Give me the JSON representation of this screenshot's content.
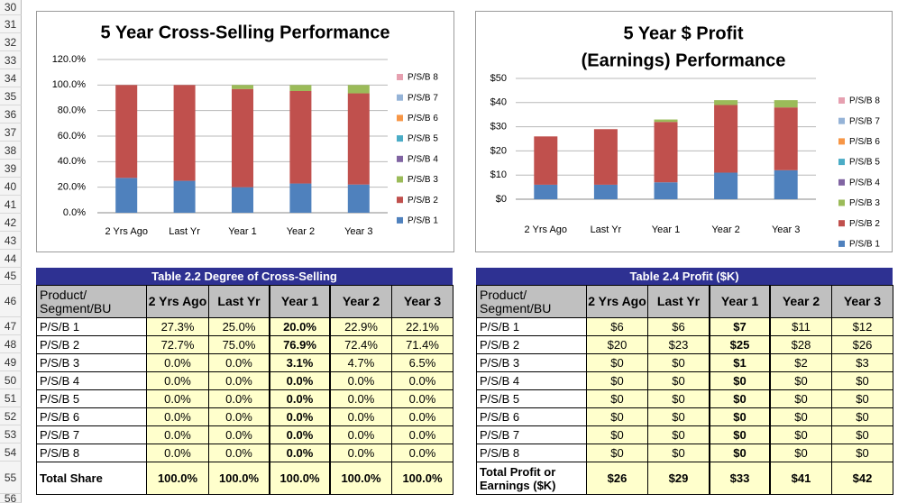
{
  "row_numbers": [
    "30",
    "31",
    "32",
    "33",
    "34",
    "35",
    "36",
    "37",
    "38",
    "39",
    "40",
    "41",
    "42",
    "43",
    "44",
    "45",
    "46",
    "47",
    "48",
    "49",
    "50",
    "51",
    "52",
    "53",
    "54",
    "55",
    "56"
  ],
  "chart_data": [
    {
      "type": "bar",
      "stacked": true,
      "title": [
        "5 Year Cross-Selling Performance"
      ],
      "grid": true,
      "legend": "right",
      "categories": [
        "2 Yrs Ago",
        "Last Yr",
        "Year 1",
        "Year 2",
        "Year 3"
      ],
      "ylim": [
        0,
        120
      ],
      "yticks": [
        {
          "value": 0,
          "label": "0.0%"
        },
        {
          "value": 20,
          "label": "20.0%"
        },
        {
          "value": 40,
          "label": "40.0%"
        },
        {
          "value": 60,
          "label": "60.0%"
        },
        {
          "value": 80,
          "label": "80.0%"
        },
        {
          "value": 100,
          "label": "100.0%"
        },
        {
          "value": 120,
          "label": "120.0%"
        }
      ],
      "series": [
        {
          "name": "P/S/B 1",
          "color": "#4f81bd",
          "values": [
            27.3,
            25.0,
            20.0,
            22.9,
            22.1
          ]
        },
        {
          "name": "P/S/B 2",
          "color": "#c0504d",
          "values": [
            72.7,
            75.0,
            76.9,
            72.4,
            71.4
          ]
        },
        {
          "name": "P/S/B 3",
          "color": "#9bbb59",
          "values": [
            0,
            0,
            3.1,
            4.7,
            6.5
          ]
        },
        {
          "name": "P/S/B 4",
          "color": "#8064a2",
          "values": [
            0,
            0,
            0,
            0,
            0
          ]
        },
        {
          "name": "P/S/B 5",
          "color": "#4bacc6",
          "values": [
            0,
            0,
            0,
            0,
            0
          ]
        },
        {
          "name": "P/S/B 6",
          "color": "#f79646",
          "values": [
            0,
            0,
            0,
            0,
            0
          ]
        },
        {
          "name": "P/S/B 7",
          "color": "#95b3d7",
          "values": [
            0,
            0,
            0,
            0,
            0
          ]
        },
        {
          "name": "P/S/B 8",
          "color": "#e6a0b0",
          "values": [
            0,
            0,
            0,
            0,
            0
          ]
        }
      ]
    },
    {
      "type": "bar",
      "stacked": true,
      "title": [
        "5 Year $ Profit",
        "(Earnings) Performance"
      ],
      "grid": true,
      "legend": "right",
      "categories": [
        "2 Yrs Ago",
        "Last Yr",
        "Year 1",
        "Year 2",
        "Year 3"
      ],
      "ylim": [
        0,
        50
      ],
      "yticks": [
        {
          "value": 0,
          "label": "$0"
        },
        {
          "value": 10,
          "label": "$10"
        },
        {
          "value": 20,
          "label": "$20"
        },
        {
          "value": 30,
          "label": "$30"
        },
        {
          "value": 40,
          "label": "$40"
        },
        {
          "value": 50,
          "label": "$50"
        }
      ],
      "series": [
        {
          "name": "P/S/B 1",
          "color": "#4f81bd",
          "values": [
            6,
            6,
            7,
            11,
            12
          ]
        },
        {
          "name": "P/S/B 2",
          "color": "#c0504d",
          "values": [
            20,
            23,
            25,
            28,
            26
          ]
        },
        {
          "name": "P/S/B 3",
          "color": "#9bbb59",
          "values": [
            0,
            0,
            1,
            2,
            3
          ]
        },
        {
          "name": "P/S/B 4",
          "color": "#8064a2",
          "values": [
            0,
            0,
            0,
            0,
            0
          ]
        },
        {
          "name": "P/S/B 5",
          "color": "#4bacc6",
          "values": [
            0,
            0,
            0,
            0,
            0
          ]
        },
        {
          "name": "P/S/B 6",
          "color": "#f79646",
          "values": [
            0,
            0,
            0,
            0,
            0
          ]
        },
        {
          "name": "P/S/B 7",
          "color": "#95b3d7",
          "values": [
            0,
            0,
            0,
            0,
            0
          ]
        },
        {
          "name": "P/S/B 8",
          "color": "#e6a0b0",
          "values": [
            0,
            0,
            0,
            0,
            0
          ]
        }
      ]
    }
  ],
  "tables": [
    {
      "title": "Table 2.2  Degree of Cross-Selling",
      "header": [
        "Product/\nSegment/BU",
        "2 Yrs Ago",
        "Last Yr",
        "Year 1",
        "Year 2",
        "Year 3"
      ],
      "rows": [
        [
          "P/S/B 1",
          "27.3%",
          "25.0%",
          "20.0%",
          "22.9%",
          "22.1%"
        ],
        [
          "P/S/B 2",
          "72.7%",
          "75.0%",
          "76.9%",
          "72.4%",
          "71.4%"
        ],
        [
          "P/S/B 3",
          "0.0%",
          "0.0%",
          "3.1%",
          "4.7%",
          "6.5%"
        ],
        [
          "P/S/B 4",
          "0.0%",
          "0.0%",
          "0.0%",
          "0.0%",
          "0.0%"
        ],
        [
          "P/S/B 5",
          "0.0%",
          "0.0%",
          "0.0%",
          "0.0%",
          "0.0%"
        ],
        [
          "P/S/B 6",
          "0.0%",
          "0.0%",
          "0.0%",
          "0.0%",
          "0.0%"
        ],
        [
          "P/S/B 7",
          "0.0%",
          "0.0%",
          "0.0%",
          "0.0%",
          "0.0%"
        ],
        [
          "P/S/B 8",
          "0.0%",
          "0.0%",
          "0.0%",
          "0.0%",
          "0.0%"
        ],
        [
          "Total Share",
          "100.0%",
          "100.0%",
          "100.0%",
          "100.0%",
          "100.0%"
        ]
      ]
    },
    {
      "title": "Table 2.4  Profit ($K)",
      "header": [
        "Product/\nSegment/BU",
        "2 Yrs Ago",
        "Last Yr",
        "Year 1",
        "Year 2",
        "Year 3"
      ],
      "rows": [
        [
          "P/S/B 1",
          "$6",
          "$6",
          "$7",
          "$11",
          "$12"
        ],
        [
          "P/S/B 2",
          "$20",
          "$23",
          "$25",
          "$28",
          "$26"
        ],
        [
          "P/S/B 3",
          "$0",
          "$0",
          "$1",
          "$2",
          "$3"
        ],
        [
          "P/S/B 4",
          "$0",
          "$0",
          "$0",
          "$0",
          "$0"
        ],
        [
          "P/S/B 5",
          "$0",
          "$0",
          "$0",
          "$0",
          "$0"
        ],
        [
          "P/S/B 6",
          "$0",
          "$0",
          "$0",
          "$0",
          "$0"
        ],
        [
          "P/S/B 7",
          "$0",
          "$0",
          "$0",
          "$0",
          "$0"
        ],
        [
          "P/S/B 8",
          "$0",
          "$0",
          "$0",
          "$0",
          "$0"
        ],
        [
          "Total Profit or Earnings ($K)",
          "$26",
          "$29",
          "$33",
          "$41",
          "$42"
        ]
      ]
    }
  ]
}
